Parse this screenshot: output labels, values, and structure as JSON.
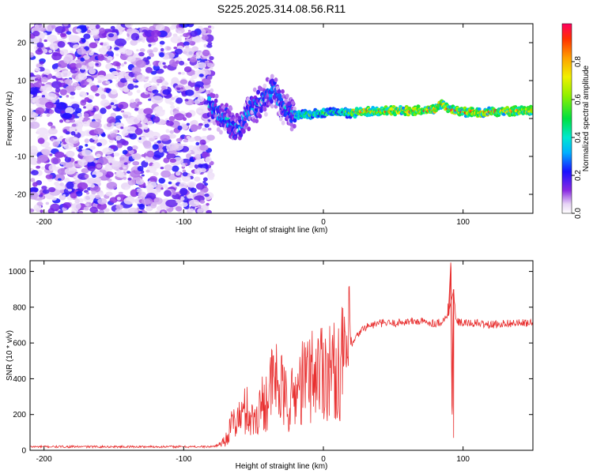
{
  "title": "S225.2025.314.08.56.R11",
  "chart_data": [
    {
      "type": "heatmap",
      "xlabel": "Height of straight line (km)",
      "ylabel": "Frequency (Hz)",
      "xlim": [
        -210,
        150
      ],
      "ylim": [
        -25,
        25
      ],
      "x_ticks": [
        -200,
        -100,
        0,
        100
      ],
      "x_tick_labels": [
        "-200",
        "-100",
        "0",
        "100"
      ],
      "y_ticks": [
        -20,
        -10,
        0,
        10,
        20
      ],
      "y_tick_labels": [
        "-20",
        "-10",
        "0",
        "10",
        "20"
      ],
      "colorbar": {
        "label": "Normalized spectral amplitude",
        "range": [
          0,
          1
        ],
        "ticks": [
          0,
          0.2,
          0.4,
          0.6,
          0.8
        ],
        "tick_labels": [
          "0.0",
          "0.2",
          "0.4",
          "0.6",
          "0.8"
        ]
      },
      "ridge": {
        "x": [
          -80,
          -75,
          -70,
          -65,
          -60,
          -55,
          -50,
          -45,
          -40,
          -35,
          -30,
          -25,
          -20,
          -10,
          0,
          20,
          40,
          60,
          80,
          85,
          88,
          95,
          110,
          130,
          150
        ],
        "freq": [
          3,
          1,
          0,
          -2,
          -3,
          1,
          3,
          4,
          6,
          8,
          3,
          2,
          1,
          1,
          1.5,
          1.5,
          2,
          2,
          2.5,
          4,
          3,
          2,
          1.5,
          2,
          2
        ]
      }
    },
    {
      "type": "line",
      "xlabel": "Height of straight line (km)",
      "ylabel": "SNR (10 * v/v)",
      "xlim": [
        -210,
        150
      ],
      "ylim": [
        0,
        1060
      ],
      "x_ticks": [
        -200,
        -100,
        0,
        100
      ],
      "x_tick_labels": [
        "-200",
        "-100",
        "0",
        "100"
      ],
      "y_ticks": [
        0,
        200,
        400,
        600,
        800,
        1000
      ],
      "y_tick_labels": [
        "0",
        "200",
        "400",
        "600",
        "800",
        "1000"
      ],
      "series": [
        {
          "name": "SNR",
          "color": "#e83030",
          "x": [
            -210,
            -190,
            -170,
            -150,
            -130,
            -110,
            -90,
            -80,
            -75,
            -70,
            -65,
            -60,
            -55,
            -50,
            -45,
            -40,
            -35,
            -30,
            -25,
            -20,
            -15,
            -10,
            -5,
            0,
            5,
            10,
            15,
            20,
            25,
            30,
            40,
            50,
            60,
            70,
            80,
            85,
            90,
            91,
            92,
            93,
            95,
            100,
            110,
            120,
            130,
            140,
            150
          ],
          "y": [
            20,
            20,
            20,
            20,
            20,
            20,
            20,
            20,
            30,
            60,
            150,
            180,
            230,
            160,
            250,
            300,
            400,
            330,
            250,
            320,
            380,
            420,
            440,
            470,
            450,
            430,
            520,
            580,
            650,
            690,
            710,
            710,
            720,
            720,
            710,
            720,
            760,
            1020,
            250,
            900,
            720,
            710,
            710,
            700,
            710,
            710,
            710
          ],
          "spikes": [
            {
              "x": 91,
              "y": 1050
            },
            {
              "x": 92,
              "y": 200
            },
            {
              "x": 93,
              "y": 70
            },
            {
              "x": 89,
              "y": 820
            }
          ]
        }
      ]
    }
  ]
}
